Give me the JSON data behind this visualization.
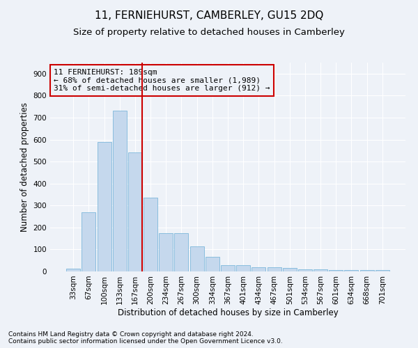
{
  "title": "11, FERNIEHURST, CAMBERLEY, GU15 2DQ",
  "subtitle": "Size of property relative to detached houses in Camberley",
  "xlabel": "Distribution of detached houses by size in Camberley",
  "ylabel": "Number of detached properties",
  "categories": [
    "33sqm",
    "67sqm",
    "100sqm",
    "133sqm",
    "167sqm",
    "200sqm",
    "234sqm",
    "267sqm",
    "300sqm",
    "334sqm",
    "367sqm",
    "401sqm",
    "434sqm",
    "467sqm",
    "501sqm",
    "534sqm",
    "567sqm",
    "601sqm",
    "634sqm",
    "668sqm",
    "701sqm"
  ],
  "values": [
    13,
    270,
    590,
    730,
    540,
    335,
    175,
    175,
    115,
    65,
    30,
    30,
    20,
    20,
    15,
    10,
    10,
    5,
    5,
    5,
    5
  ],
  "bar_color": "#c5d8ed",
  "bar_edge_color": "#6aaed6",
  "annotation_box_text_line1": "11 FERNIEHURST: 189sqm",
  "annotation_box_text_line2": "← 68% of detached houses are smaller (1,989)",
  "annotation_box_text_line3": "31% of semi-detached houses are larger (912) →",
  "annotation_box_color": "#cc0000",
  "vline_color": "#cc0000",
  "vline_x": 4.45,
  "footer_line1": "Contains HM Land Registry data © Crown copyright and database right 2024.",
  "footer_line2": "Contains public sector information licensed under the Open Government Licence v3.0.",
  "ylim": [
    0,
    950
  ],
  "yticks": [
    0,
    100,
    200,
    300,
    400,
    500,
    600,
    700,
    800,
    900
  ],
  "bg_color": "#eef2f8",
  "grid_color": "#ffffff",
  "title_fontsize": 11,
  "subtitle_fontsize": 9.5,
  "axis_label_fontsize": 8.5,
  "tick_fontsize": 7.5,
  "footer_fontsize": 6.5,
  "annotation_fontsize": 8
}
